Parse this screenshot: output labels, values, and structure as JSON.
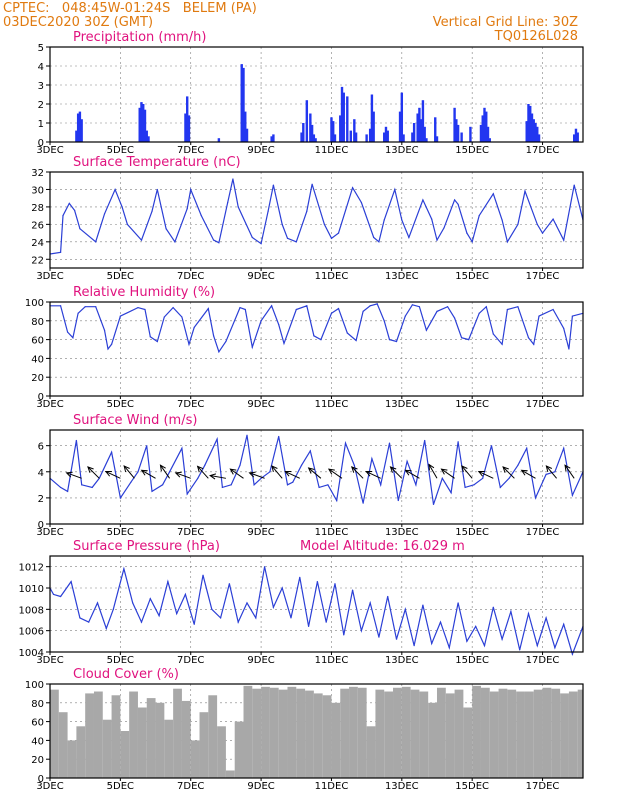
{
  "header": {
    "station": "CPTEC:   048:45W-01:24S   BELEM (PA)",
    "date": "03DEC2020 30Z (GMT)",
    "grid_line": "Vertical Grid Line: 30Z",
    "model": "TQ0126L028"
  },
  "colors": {
    "line": "#2b3fd6",
    "bar": "#2236f0",
    "cloud": "#a8a8a8",
    "title": "#e0127e",
    "header": "#e07a10",
    "axis": "#000000",
    "grid": "#808080"
  },
  "chart_data": [
    {
      "id": "precip",
      "type": "bar",
      "title": "Precipitation (mm/h)",
      "ylim": [
        0,
        5
      ],
      "yticks": [
        0,
        1,
        2,
        3,
        4,
        5
      ],
      "x_range_days": [
        3,
        18.15
      ],
      "xtick_labels": [
        "3DEC",
        "5DEC",
        "7DEC",
        "9DEC",
        "11DEC",
        "13DEC",
        "15DEC",
        "17DEC"
      ],
      "x_days": [
        3.75,
        3.8,
        3.85,
        3.9,
        5.55,
        5.6,
        5.65,
        5.7,
        5.75,
        5.8,
        6.85,
        6.9,
        6.95,
        7.8,
        8.45,
        8.5,
        8.55,
        8.6,
        9.3,
        9.35,
        10.15,
        10.2,
        10.3,
        10.4,
        10.45,
        10.5,
        10.55,
        11.0,
        11.05,
        11.1,
        11.25,
        11.3,
        11.35,
        11.45,
        11.55,
        11.65,
        11.7,
        12.0,
        12.1,
        12.15,
        12.2,
        12.5,
        12.55,
        12.6,
        12.95,
        13.0,
        13.05,
        13.3,
        13.35,
        13.45,
        13.5,
        13.55,
        13.6,
        13.65,
        13.7,
        13.95,
        14.0,
        14.5,
        14.55,
        14.6,
        14.7,
        14.95,
        15.25,
        15.3,
        15.35,
        15.4,
        15.45,
        15.5,
        16.55,
        16.6,
        16.65,
        16.7,
        16.75,
        16.8,
        16.85,
        16.9,
        17.9,
        17.95,
        18.0
      ],
      "values": [
        0.6,
        1.5,
        1.6,
        1.2,
        1.8,
        2.1,
        2.0,
        1.7,
        0.6,
        0.3,
        1.5,
        2.4,
        1.4,
        0.2,
        4.1,
        3.9,
        1.6,
        0.7,
        0.3,
        0.4,
        0.5,
        1.0,
        2.2,
        1.5,
        0.9,
        0.4,
        0.2,
        1.3,
        1.1,
        0.4,
        1.4,
        2.9,
        2.6,
        2.4,
        0.6,
        1.2,
        0.5,
        0.4,
        0.7,
        2.5,
        1.6,
        0.5,
        0.8,
        0.6,
        1.6,
        2.6,
        0.4,
        0.5,
        1.0,
        1.5,
        1.8,
        1.2,
        2.2,
        0.8,
        0.2,
        1.3,
        0.3,
        1.8,
        1.2,
        0.9,
        0.5,
        0.8,
        0.9,
        1.4,
        1.8,
        1.6,
        0.8,
        0.2,
        1.1,
        2.0,
        1.9,
        1.5,
        1.2,
        1.0,
        0.8,
        0.4,
        0.4,
        0.7,
        0.5
      ]
    },
    {
      "id": "temp",
      "type": "line",
      "title": "Surface Temperature (nC)",
      "ylim": [
        21,
        32
      ],
      "yticks": [
        22,
        24,
        26,
        28,
        30,
        32
      ],
      "x_range_days": [
        3,
        18.15
      ],
      "xtick_labels": [
        "3DEC",
        "5DEC",
        "7DEC",
        "9DEC",
        "11DEC",
        "13DEC",
        "15DEC",
        "17DEC"
      ],
      "x_days": [
        3,
        3.3,
        3.37,
        3.55,
        3.7,
        3.85,
        4.3,
        4.55,
        4.85,
        5.05,
        5.2,
        5.6,
        5.9,
        6.05,
        6.3,
        6.55,
        6.9,
        7.0,
        7.3,
        7.65,
        7.8,
        8.05,
        8.2,
        8.35,
        8.75,
        9.0,
        9.2,
        9.35,
        9.6,
        9.75,
        10.0,
        10.3,
        10.45,
        10.8,
        11.0,
        11.2,
        11.6,
        11.85,
        12.2,
        12.35,
        12.5,
        12.8,
        13.0,
        13.2,
        13.6,
        13.85,
        14.0,
        14.2,
        14.5,
        14.6,
        14.85,
        15.0,
        15.2,
        15.6,
        15.85,
        16.0,
        16.3,
        16.5,
        16.85,
        17.0,
        17.3,
        17.6,
        17.9,
        18.15
      ],
      "values": [
        22.6,
        22.8,
        27.0,
        28.4,
        27.6,
        25.5,
        24.0,
        27.2,
        30.0,
        28.0,
        26.0,
        24.2,
        27.5,
        30.0,
        25.5,
        24.0,
        27.8,
        30.0,
        27.0,
        24.2,
        23.9,
        28.5,
        31.2,
        28.0,
        24.5,
        23.8,
        27.5,
        30.5,
        26.0,
        24.4,
        24.0,
        27.5,
        30.6,
        26.0,
        24.4,
        25.0,
        30.2,
        28.5,
        24.5,
        24.0,
        26.5,
        30.0,
        26.5,
        24.5,
        28.8,
        26.6,
        24.2,
        25.6,
        28.8,
        28.3,
        25.0,
        24.0,
        27.0,
        29.5,
        26.5,
        24.0,
        26.0,
        29.8,
        26.0,
        25.0,
        26.6,
        24.2,
        30.5,
        26.5
      ]
    },
    {
      "id": "rh",
      "type": "line",
      "title": "Relative Humidity (%)",
      "ylim": [
        0,
        100
      ],
      "yticks": [
        0,
        20,
        40,
        60,
        80,
        100
      ],
      "x_range_days": [
        3,
        18.15
      ],
      "xtick_labels": [
        "3DEC",
        "5DEC",
        "7DEC",
        "9DEC",
        "11DEC",
        "13DEC",
        "15DEC",
        "17DEC"
      ],
      "x_days": [
        3,
        3.3,
        3.5,
        3.65,
        3.8,
        4.0,
        4.3,
        4.55,
        4.65,
        4.75,
        5.0,
        5.5,
        5.7,
        5.85,
        6.05,
        6.25,
        6.5,
        6.75,
        6.95,
        7.1,
        7.5,
        7.65,
        7.8,
        8.0,
        8.4,
        8.55,
        8.75,
        9.0,
        9.3,
        9.5,
        9.65,
        10.0,
        10.3,
        10.5,
        10.7,
        11.0,
        11.2,
        11.45,
        11.7,
        11.9,
        12.1,
        12.3,
        12.5,
        12.65,
        12.85,
        13.1,
        13.3,
        13.5,
        13.7,
        14.0,
        14.3,
        14.5,
        14.7,
        14.9,
        15.2,
        15.4,
        15.6,
        15.85,
        16.0,
        16.3,
        16.6,
        16.75,
        16.9,
        17.3,
        17.6,
        17.75,
        17.85,
        18.15
      ],
      "values": [
        96,
        96,
        68,
        62,
        88,
        95,
        95,
        70,
        50,
        55,
        85,
        94,
        92,
        63,
        58,
        84,
        94,
        84,
        55,
        73,
        93,
        64,
        47,
        58,
        94,
        92,
        52,
        80,
        96,
        76,
        56,
        92,
        96,
        64,
        60,
        88,
        93,
        67,
        59,
        90,
        96,
        98,
        80,
        60,
        58,
        85,
        97,
        95,
        70,
        90,
        95,
        83,
        62,
        60,
        88,
        95,
        66,
        55,
        92,
        95,
        62,
        55,
        85,
        92,
        72,
        50,
        85,
        88
      ]
    },
    {
      "id": "wind",
      "type": "line",
      "title": "Surface Wind (m/s)",
      "ylim": [
        0,
        7.2
      ],
      "yticks": [
        0,
        2,
        4,
        6
      ],
      "x_range_days": [
        3,
        18.15
      ],
      "xtick_labels": [
        "3DEC",
        "5DEC",
        "7DEC",
        "9DEC",
        "11DEC",
        "13DEC",
        "15DEC",
        "17DEC"
      ],
      "x_days": [
        3,
        3.3,
        3.5,
        3.75,
        3.9,
        4.2,
        4.4,
        4.75,
        5.0,
        5.3,
        5.5,
        5.75,
        5.9,
        6.2,
        6.4,
        6.75,
        6.9,
        7.2,
        7.4,
        7.75,
        7.9,
        8.15,
        8.4,
        8.6,
        8.8,
        9.0,
        9.25,
        9.5,
        9.75,
        9.9,
        10.15,
        10.4,
        10.65,
        10.9,
        11.15,
        11.4,
        11.65,
        11.9,
        12.15,
        12.4,
        12.65,
        12.9,
        13.15,
        13.4,
        13.65,
        13.9,
        14.15,
        14.4,
        14.6,
        14.8,
        15.05,
        15.3,
        15.55,
        15.8,
        16.05,
        16.3,
        16.55,
        16.8,
        17.1,
        17.35,
        17.6,
        17.85,
        18.15
      ],
      "values": [
        3.5,
        2.8,
        2.5,
        6.4,
        3.0,
        2.8,
        3.5,
        5.5,
        2.0,
        3.2,
        4.0,
        6.0,
        2.5,
        3.0,
        4.0,
        5.8,
        2.3,
        3.5,
        4.5,
        6.5,
        2.8,
        3.0,
        4.5,
        6.8,
        3.0,
        3.5,
        4.0,
        6.7,
        3.0,
        3.2,
        4.5,
        5.6,
        2.8,
        3.0,
        1.8,
        6.2,
        4.5,
        1.6,
        5.0,
        3.0,
        6.2,
        1.8,
        4.8,
        3.0,
        6.4,
        1.5,
        3.5,
        2.4,
        6.3,
        2.8,
        3.0,
        3.5,
        6.0,
        2.8,
        3.5,
        4.5,
        5.8,
        2.0,
        3.8,
        4.0,
        5.8,
        2.2,
        4.0
      ],
      "vectors": [
        {
          "day": 3.9,
          "angle": 200
        },
        {
          "day": 4.4,
          "angle": 225
        },
        {
          "day": 5.0,
          "angle": 205
        },
        {
          "day": 5.4,
          "angle": 230
        },
        {
          "day": 6.0,
          "angle": 210
        },
        {
          "day": 6.4,
          "angle": 235
        },
        {
          "day": 7.0,
          "angle": 200
        },
        {
          "day": 7.5,
          "angle": 228
        },
        {
          "day": 8.0,
          "angle": 190
        },
        {
          "day": 8.5,
          "angle": 215
        },
        {
          "day": 9.1,
          "angle": 200
        },
        {
          "day": 9.6,
          "angle": 230
        },
        {
          "day": 10.1,
          "angle": 205
        },
        {
          "day": 10.7,
          "angle": 220
        },
        {
          "day": 11.3,
          "angle": 215
        },
        {
          "day": 11.9,
          "angle": 225
        },
        {
          "day": 12.4,
          "angle": 205
        },
        {
          "day": 13.0,
          "angle": 225
        },
        {
          "day": 13.5,
          "angle": 210
        },
        {
          "day": 14.0,
          "angle": 240
        },
        {
          "day": 14.5,
          "angle": 215
        },
        {
          "day": 15.0,
          "angle": 230
        },
        {
          "day": 15.6,
          "angle": 205
        },
        {
          "day": 16.2,
          "angle": 225
        },
        {
          "day": 16.8,
          "angle": 210
        },
        {
          "day": 17.4,
          "angle": 230
        },
        {
          "day": 17.9,
          "angle": 235
        }
      ]
    },
    {
      "id": "pres",
      "type": "line",
      "title": "Surface Pressure (hPa)",
      "subtitle": "Model Altitude: 16.029 m",
      "ylim": [
        1004,
        1013
      ],
      "yticks": [
        1004,
        1006,
        1008,
        1010,
        1012
      ],
      "x_range_days": [
        3,
        18.15
      ],
      "xtick_labels": [
        "3DEC",
        "5DEC",
        "7DEC",
        "9DEC",
        "11DEC",
        "13DEC",
        "15DEC",
        "17DEC"
      ],
      "x_days": [
        3,
        3.1,
        3.3,
        3.6,
        3.85,
        4.1,
        4.35,
        4.6,
        4.8,
        5.1,
        5.35,
        5.6,
        5.85,
        6.1,
        6.35,
        6.6,
        6.85,
        7.1,
        7.35,
        7.6,
        7.85,
        8.1,
        8.35,
        8.6,
        8.85,
        9.1,
        9.35,
        9.6,
        9.85,
        10.1,
        10.35,
        10.6,
        10.85,
        11.1,
        11.35,
        11.6,
        11.85,
        12.1,
        12.35,
        12.6,
        12.85,
        13.1,
        13.35,
        13.6,
        13.85,
        14.1,
        14.35,
        14.6,
        14.85,
        15.1,
        15.35,
        15.6,
        15.85,
        16.1,
        16.35,
        16.6,
        16.85,
        17.1,
        17.35,
        17.6,
        17.85,
        18.15
      ],
      "values": [
        1010.0,
        1009.4,
        1009.2,
        1010.6,
        1007.2,
        1006.8,
        1008.6,
        1006.2,
        1008.0,
        1011.8,
        1008.6,
        1006.8,
        1009.0,
        1007.4,
        1010.6,
        1007.6,
        1009.4,
        1006.6,
        1011.2,
        1008.0,
        1007.2,
        1010.4,
        1006.8,
        1008.6,
        1007.2,
        1012.0,
        1008.2,
        1010.0,
        1007.2,
        1011.0,
        1006.4,
        1010.6,
        1006.8,
        1010.4,
        1005.6,
        1009.8,
        1006.0,
        1008.6,
        1005.4,
        1009.2,
        1005.2,
        1008.0,
        1004.6,
        1008.4,
        1004.8,
        1006.8,
        1004.4,
        1008.6,
        1005.0,
        1006.4,
        1004.6,
        1008.2,
        1005.2,
        1007.8,
        1004.2,
        1007.6,
        1004.6,
        1007.2,
        1004.4,
        1006.6,
        1003.8,
        1006.4
      ]
    },
    {
      "id": "cloud",
      "type": "bar",
      "title": "Cloud Cover (%)",
      "ylim": [
        0,
        100
      ],
      "yticks": [
        0,
        20,
        40,
        60,
        80,
        100
      ],
      "x_range_days": [
        3,
        18.15
      ],
      "xtick_labels": [
        "3DEC",
        "5DEC",
        "7DEC",
        "9DEC",
        "11DEC",
        "13DEC",
        "15DEC",
        "17DEC"
      ],
      "x_days": [
        3,
        3.25,
        3.5,
        3.75,
        4.0,
        4.25,
        4.5,
        4.75,
        5.0,
        5.25,
        5.5,
        5.75,
        6.0,
        6.25,
        6.5,
        6.75,
        7.0,
        7.25,
        7.5,
        7.75,
        8.0,
        8.25,
        8.5,
        8.75,
        9.0,
        9.25,
        9.5,
        9.75,
        10.0,
        10.25,
        10.5,
        10.75,
        11.0,
        11.25,
        11.5,
        11.75,
        12.0,
        12.25,
        12.5,
        12.75,
        13.0,
        13.25,
        13.5,
        13.75,
        14.0,
        14.25,
        14.5,
        14.75,
        15.0,
        15.25,
        15.5,
        15.75,
        16.0,
        16.25,
        16.5,
        16.75,
        17.0,
        17.25,
        17.5,
        17.75,
        18.0
      ],
      "values": [
        94,
        70,
        40,
        55,
        90,
        92,
        62,
        88,
        50,
        92,
        75,
        85,
        80,
        62,
        95,
        82,
        40,
        70,
        88,
        55,
        8,
        60,
        98,
        95,
        97,
        96,
        94,
        97,
        95,
        93,
        90,
        88,
        80,
        95,
        97,
        96,
        55,
        94,
        92,
        96,
        97,
        94,
        92,
        80,
        96,
        90,
        94,
        75,
        98,
        96,
        92,
        95,
        94,
        92,
        92,
        94,
        96,
        95,
        90,
        92,
        94
      ]
    }
  ]
}
